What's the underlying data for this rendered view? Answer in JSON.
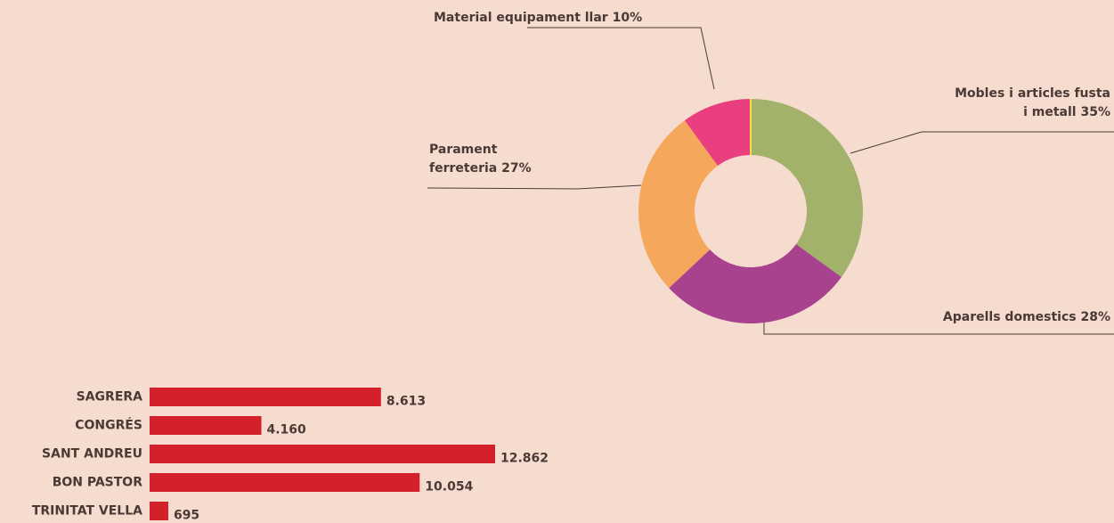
{
  "chart_data": [
    {
      "type": "pie",
      "donut": true,
      "categories": [
        "Mobles i articles fusta i metall",
        "Aparells domestics",
        "Parament ferreteria",
        "Material equipament llar"
      ],
      "values": [
        35,
        28,
        27,
        10
      ],
      "value_labels": [
        "35%",
        "28%",
        "27%",
        "10%"
      ],
      "colors": [
        "#a3b26b",
        "#a8428f",
        "#f5a75c",
        "#e93e80"
      ]
    },
    {
      "type": "hbar",
      "categories": [
        "SAGRERA",
        "CONGRÉS",
        "SANT ANDREU",
        "BON PASTOR",
        "TRINITAT VELLA"
      ],
      "values": [
        8613,
        4160,
        12862,
        10054,
        695
      ],
      "value_labels": [
        "8.613",
        "4.160",
        "12.862",
        "10.054",
        "695"
      ],
      "color": "#d4202a"
    }
  ]
}
